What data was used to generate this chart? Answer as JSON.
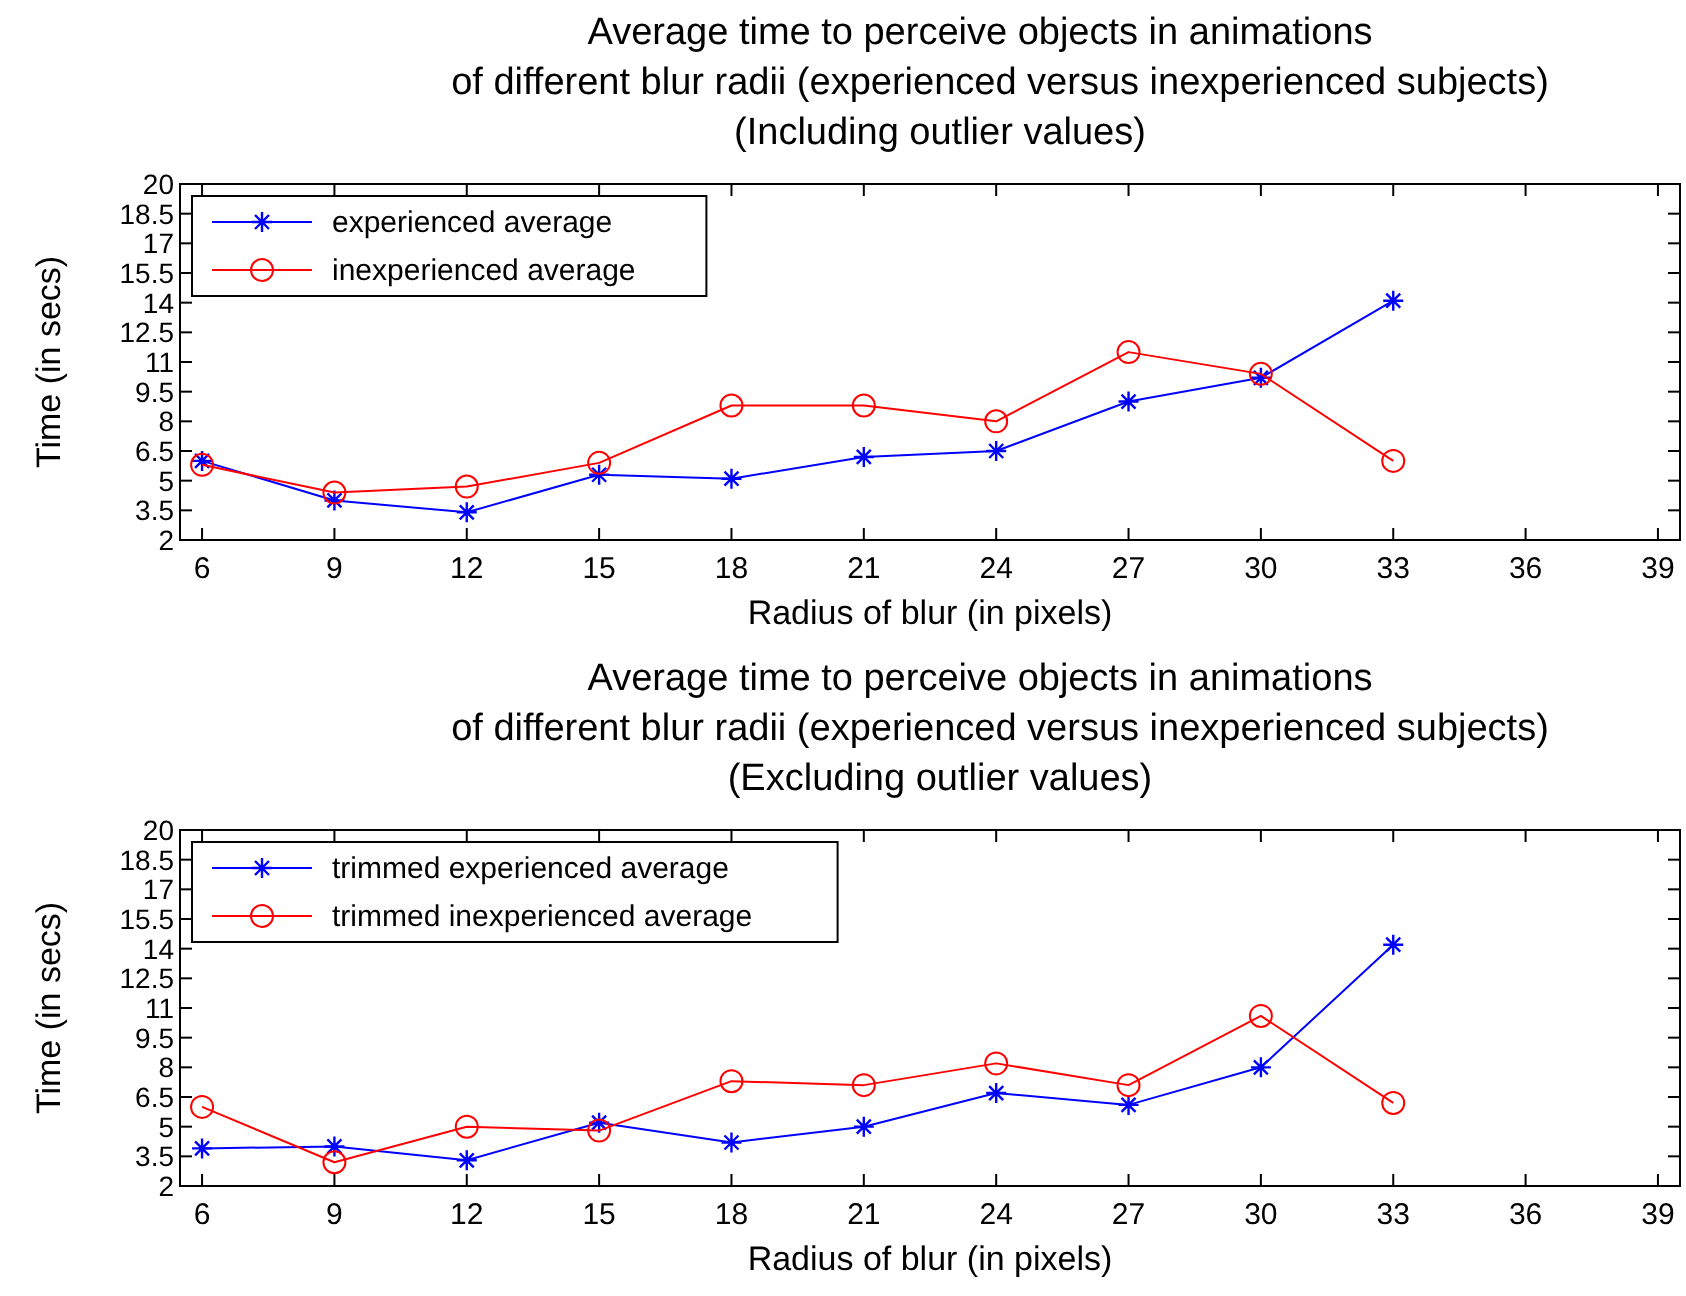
{
  "chart_data": [
    {
      "type": "line",
      "title": "Average time to perceive objects in animations\nof different blur radii (experienced versus inexperienced subjects)\n(Including outlier values)",
      "xlabel": "Radius of blur (in pixels)",
      "ylabel": "Time (in secs)",
      "x": [
        6,
        9,
        12,
        15,
        18,
        21,
        24,
        27,
        30,
        33
      ],
      "xlim": [
        5.5,
        39.5
      ],
      "xticks": [
        6,
        9,
        12,
        15,
        18,
        21,
        24,
        27,
        30,
        33,
        36,
        39
      ],
      "ylim": [
        2,
        20
      ],
      "yticks": [
        2,
        3.5,
        5,
        6.5,
        8,
        9.5,
        11,
        12.5,
        14,
        15.5,
        17,
        18.5,
        20
      ],
      "legend": "top left",
      "grid": false,
      "series": [
        {
          "name": "experienced average",
          "color": "#0000ff",
          "marker": "cross",
          "values": [
            6.0,
            4.0,
            3.4,
            5.3,
            5.1,
            6.2,
            6.5,
            9.0,
            10.2,
            14.1
          ]
        },
        {
          "name": "inexperienced average",
          "color": "#ff0000",
          "marker": "circle",
          "values": [
            5.8,
            4.4,
            4.7,
            5.9,
            8.8,
            8.8,
            8.0,
            11.5,
            10.4,
            6.0
          ]
        }
      ]
    },
    {
      "type": "line",
      "title": "Average time to perceive objects in animations\nof different blur radii (experienced versus inexperienced subjects)\n(Excluding outlier values)",
      "xlabel": "Radius of blur (in pixels)",
      "ylabel": "Time (in secs)",
      "x": [
        6,
        9,
        12,
        15,
        18,
        21,
        24,
        27,
        30,
        33
      ],
      "xlim": [
        5.5,
        39.5
      ],
      "xticks": [
        6,
        9,
        12,
        15,
        18,
        21,
        24,
        27,
        30,
        33,
        36,
        39
      ],
      "ylim": [
        2,
        20
      ],
      "yticks": [
        2,
        3.5,
        5,
        6.5,
        8,
        9.5,
        11,
        12.5,
        14,
        15.5,
        17,
        18.5,
        20
      ],
      "legend": "top left",
      "grid": false,
      "series": [
        {
          "name": "trimmed experienced average",
          "color": "#0000ff",
          "marker": "cross",
          "values": [
            3.9,
            4.0,
            3.3,
            5.2,
            4.2,
            5.0,
            6.7,
            6.1,
            8.0,
            14.2
          ]
        },
        {
          "name": "trimmed inexperienced average",
          "color": "#ff0000",
          "marker": "circle",
          "values": [
            6.0,
            3.2,
            5.0,
            4.8,
            7.3,
            7.1,
            8.2,
            7.1,
            10.6,
            6.2
          ]
        }
      ]
    }
  ]
}
